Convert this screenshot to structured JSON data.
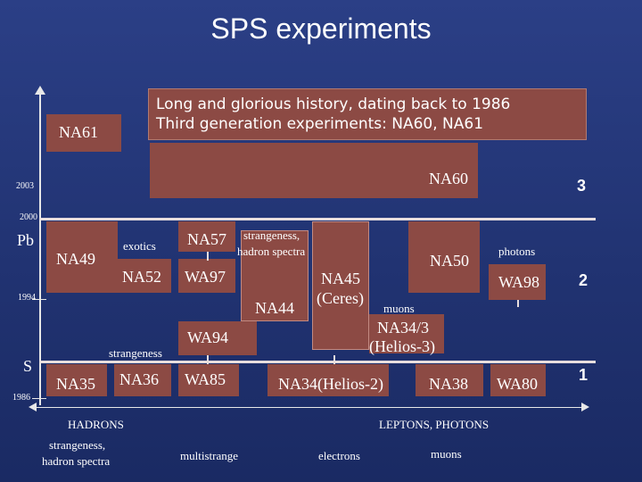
{
  "slide": {
    "title": "SPS experiments",
    "callout": {
      "line1": "Long and glorious history, dating back to 1986",
      "line2": "Third generation experiments: NA60, NA61"
    },
    "years": [
      "2003",
      "2000",
      "1994",
      "1986"
    ],
    "beams": [
      "Pb",
      "S"
    ],
    "generations": [
      "3",
      "2",
      "1"
    ],
    "experiments": {
      "na61": "NA61",
      "na60": "NA60",
      "na49": "NA49",
      "na57": "NA57",
      "na52": "NA52",
      "wa97": "WA97",
      "na44": "NA44",
      "na45": "NA45",
      "ceres": "(Ceres)",
      "na50": "NA50",
      "wa98": "WA98",
      "wa94": "WA94",
      "na34_3": "NA34/3",
      "helios3": "(Helios-3)",
      "na35": "NA35",
      "na36": "NA36",
      "wa85": "WA85",
      "na34_helios2": "NA34(Helios-2)",
      "na38": "NA38",
      "wa80": "WA80"
    },
    "physics": {
      "exotics": "exotics",
      "strangeness_hadron_line1": "strangeness,",
      "strangeness_hadron_line2": "hadron spectra",
      "photons": "photons",
      "muons": "muons",
      "strangeness": "strangeness"
    },
    "categories": {
      "hadrons": "HADRONS",
      "leptons_photons": "LEPTONS, PHOTONS"
    },
    "bottom_labels": {
      "strangeness_line1": "strangeness,",
      "strangeness_line2": "hadron spectra",
      "multistrange": "multistrange",
      "electrons": "electrons",
      "muons": "muons"
    }
  }
}
